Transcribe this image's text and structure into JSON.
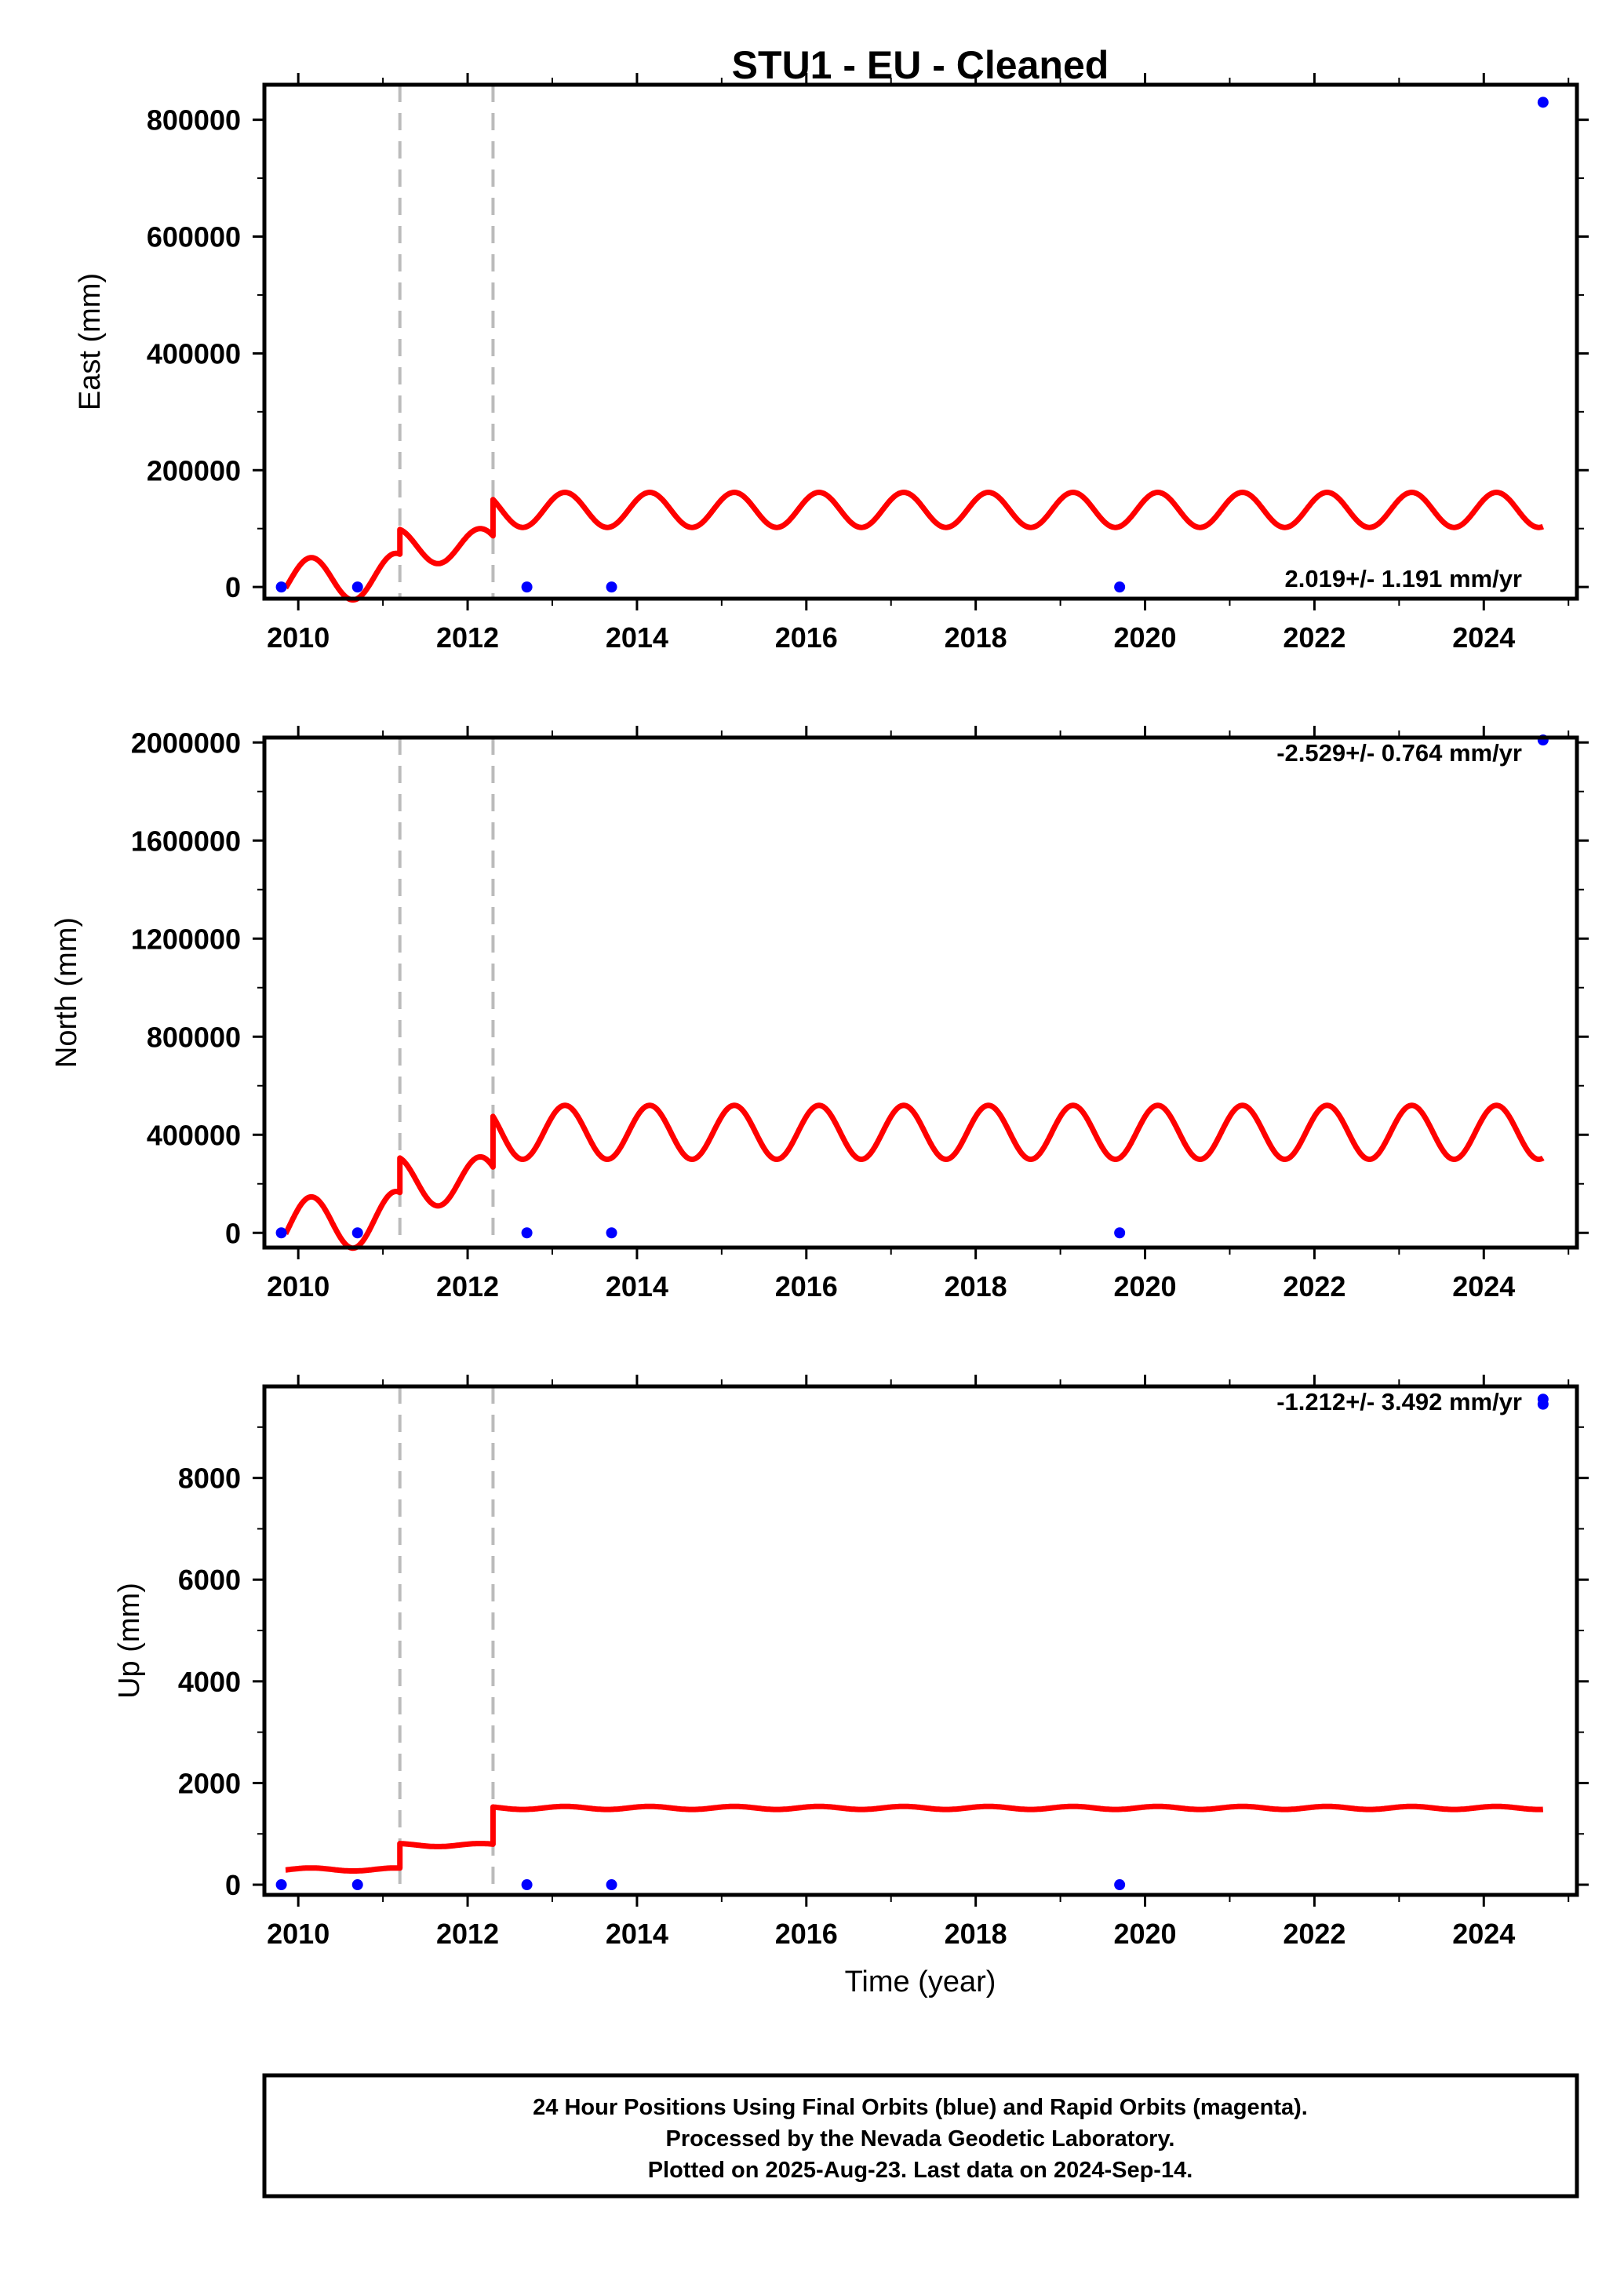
{
  "chart_data": [
    {
      "type": "line",
      "title": "STU1  - EU - Cleaned",
      "xlabel": "",
      "ylabel": "East (mm)",
      "xlim": [
        2009.6,
        2025.1
      ],
      "ylim": [
        -20000,
        860000
      ],
      "x_ticks": [
        "2010",
        "2012",
        "2014",
        "2016",
        "2018",
        "2020",
        "2022",
        "2024"
      ],
      "y_ticks": [
        "0",
        "200000",
        "400000",
        "600000",
        "800000"
      ],
      "rate_text": "2.019+/- 1.191 mm/yr",
      "breaks": [
        2011.2,
        2012.3
      ],
      "points": {
        "x": [
          2009.8,
          2010.7,
          2012.7,
          2013.7,
          2019.7,
          2024.7
        ],
        "y": [
          0,
          0,
          0,
          0,
          0,
          830000
        ]
      },
      "model_segments": [
        {
          "x_start": 2009.85,
          "x_end": 2011.2,
          "center": 10000,
          "amplitude": 38000,
          "rise": 10000
        },
        {
          "x_start": 2011.2,
          "x_end": 2012.3,
          "center": 70000,
          "amplitude": 30000,
          "rise": 0
        },
        {
          "x_start": 2012.3,
          "x_end": 2024.7,
          "center": 132000,
          "amplitude": 30000,
          "rise": 0
        }
      ]
    },
    {
      "type": "line",
      "title": "",
      "xlabel": "",
      "ylabel": "North (mm)",
      "xlim": [
        2009.6,
        2025.1
      ],
      "ylim": [
        -60000,
        2020000
      ],
      "x_ticks": [
        "2010",
        "2012",
        "2014",
        "2016",
        "2018",
        "2020",
        "2022",
        "2024"
      ],
      "y_ticks": [
        "0",
        "400000",
        "800000",
        "1200000",
        "1600000",
        "2000000"
      ],
      "rate_text": "-2.529+/- 0.764 mm/yr",
      "breaks": [
        2011.2,
        2012.3
      ],
      "points": {
        "x": [
          2009.8,
          2010.7,
          2012.7,
          2013.7,
          2019.7,
          2024.7
        ],
        "y": [
          0,
          0,
          0,
          0,
          0,
          2010000
        ]
      },
      "model_segments": [
        {
          "x_start": 2009.85,
          "x_end": 2011.2,
          "center": 30000,
          "amplitude": 110000,
          "rise": 30000
        },
        {
          "x_start": 2011.2,
          "x_end": 2012.3,
          "center": 210000,
          "amplitude": 100000,
          "rise": 0
        },
        {
          "x_start": 2012.3,
          "x_end": 2024.7,
          "center": 410000,
          "amplitude": 110000,
          "rise": 0
        }
      ]
    },
    {
      "type": "line",
      "title": "",
      "xlabel": "Time (year)",
      "ylabel": "Up (mm)",
      "xlim": [
        2009.6,
        2025.1
      ],
      "ylim": [
        -200,
        9800
      ],
      "x_ticks": [
        "2010",
        "2012",
        "2014",
        "2016",
        "2018",
        "2020",
        "2022",
        "2024"
      ],
      "y_ticks": [
        "0",
        "2000",
        "4000",
        "6000",
        "8000"
      ],
      "rate_text": "-1.212+/- 3.492 mm/yr",
      "breaks": [
        2011.2,
        2012.3
      ],
      "points": {
        "x": [
          2009.8,
          2010.7,
          2012.7,
          2013.7,
          2019.7,
          2024.7,
          2024.7
        ],
        "y": [
          0,
          0,
          0,
          0,
          0,
          9450,
          9550
        ]
      },
      "model_segments": [
        {
          "x_start": 2009.85,
          "x_end": 2011.2,
          "center": 300.0,
          "amplitude": 30,
          "rise": 0
        },
        {
          "x_start": 2011.2,
          "x_end": 2012.3,
          "center": 780,
          "amplitude": 30,
          "rise": 0
        },
        {
          "x_start": 2012.3,
          "x_end": 2024.7,
          "center": 1510,
          "amplitude": 30,
          "rise": 0
        }
      ]
    }
  ],
  "footer": {
    "line1": "24 Hour Positions Using Final Orbits (blue) and Rapid Orbits (magenta).",
    "line2": "Processed by the Nevada Geodetic Laboratory.",
    "line3": "Plotted on 2025-Aug-23. Last data on 2024-Sep-14."
  },
  "colors": {
    "points": "#0000ff",
    "model": "#ff0000",
    "breaks": "#bbbbbb",
    "frame": "#000000"
  }
}
